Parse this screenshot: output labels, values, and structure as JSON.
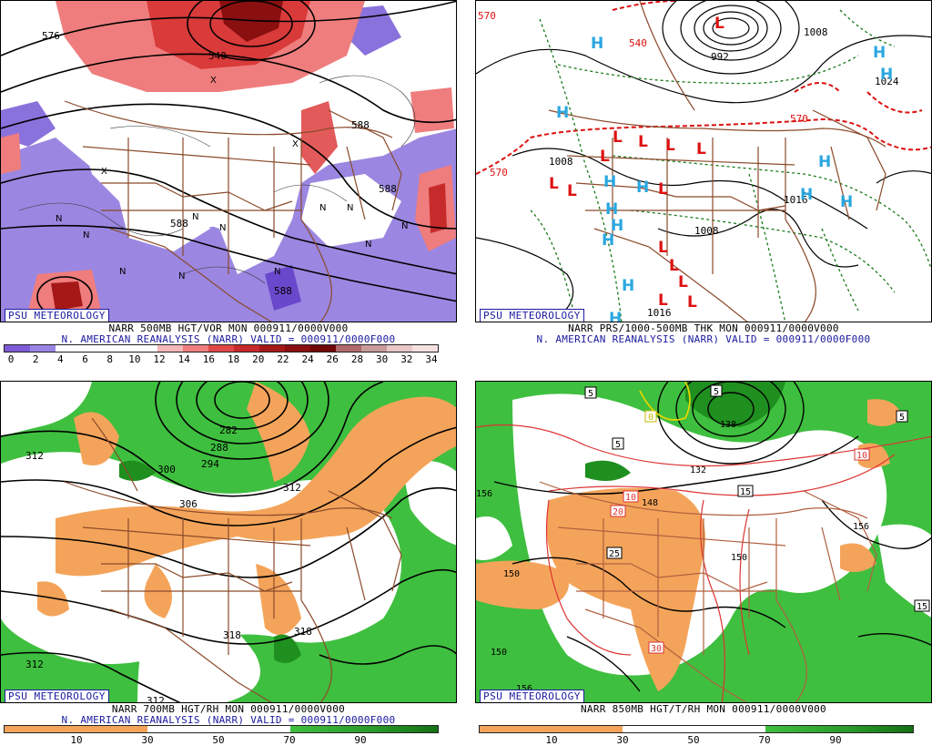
{
  "panels": [
    {
      "badge": "PSU METEOROLOGY",
      "caption1": "NARR 500MB HGT/VOR MON 000911/0000V000",
      "caption2": "N. AMERICAN REANALYSIS (NARR) VALID = 000911/0000F000",
      "contours": [
        "576",
        "540",
        "588",
        "588",
        "588",
        "588"
      ],
      "colorbar": {
        "colors": [
          "#7d5bd8",
          "#9a85e4",
          "#ffffff",
          "#ffffff",
          "#ffffff",
          "#ffffff",
          "#f4b8b8",
          "#ef7d7d",
          "#e04848",
          "#c72a2a",
          "#a61818",
          "#8a0f0f",
          "#700808",
          "#b06a6a",
          "#c99b9b",
          "#e7c7c7",
          "#f6e1e1"
        ],
        "ticks": [
          "0",
          "2",
          "4",
          "6",
          "8",
          "10",
          "12",
          "14",
          "16",
          "18",
          "20",
          "22",
          "24",
          "26",
          "28",
          "30",
          "32",
          "34"
        ]
      }
    },
    {
      "badge": "PSU METEOROLOGY",
      "caption1": "NARR PRS/1000-500MB THK MON 000911/0000V000",
      "caption2": "N. AMERICAN REANALYSIS (NARR) VALID = 000911/0000F000",
      "contours": [
        "570",
        "540",
        "570",
        "570",
        "1008",
        "992",
        "1024",
        "1008",
        "1008",
        "1016",
        "1016"
      ],
      "highs": 14,
      "lows": 14
    },
    {
      "badge": "PSU METEOROLOGY",
      "caption1": "NARR 700MB HGT/RH MON 000911/0000V000",
      "caption2": "N. AMERICAN REANALYSIS (NARR) VALID = 000911/0000F000",
      "contours": [
        "312",
        "282",
        "288",
        "294",
        "300",
        "306",
        "312",
        "318",
        "318",
        "312",
        "312"
      ],
      "colorbar": {
        "ticks": [
          "10",
          "30",
          "50",
          "70",
          "90"
        ]
      }
    },
    {
      "badge": "PSU METEOROLOGY",
      "caption1": "NARR 850MB HGT/T/RH MON 000911/0000V000",
      "contours": [
        "5",
        "5",
        "5",
        "5",
        "0",
        "132",
        "138",
        "10",
        "10",
        "20",
        "148",
        "15",
        "25",
        "150",
        "156",
        "156",
        "150",
        "30",
        "15",
        "150",
        "156"
      ],
      "colorbar": {
        "ticks": [
          "10",
          "30",
          "50",
          "70",
          "90"
        ]
      }
    }
  ]
}
